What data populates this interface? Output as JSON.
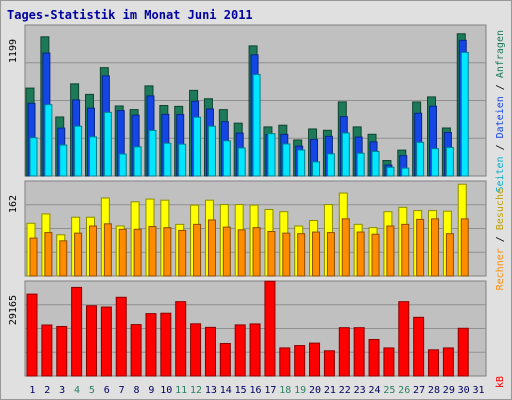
{
  "title": "Tages-Statistik im Monat Juni 2011",
  "colors": {
    "frame_bg": "#e0e0e0",
    "panel_bg": "#c0c0c0",
    "anfragen": "#1d7a58",
    "dateien": "#1446e6",
    "seiten": "#00e6ff",
    "besuche": "#ffff00",
    "rechner": "#ff8c00",
    "kb": "#ff0000",
    "title": "#0000a0",
    "weekend_label": "#2a8060",
    "weekday_label": "#000060"
  },
  "chart_data": [
    {
      "type": "bar",
      "name": "hits-files-pages",
      "categories": [
        "1",
        "2",
        "3",
        "4",
        "5",
        "6",
        "7",
        "8",
        "9",
        "10",
        "11",
        "12",
        "13",
        "14",
        "15",
        "16",
        "17",
        "18",
        "19",
        "20",
        "21",
        "22",
        "23",
        "24",
        "25",
        "26",
        "27",
        "28",
        "29",
        "30",
        "31"
      ],
      "weekend_days": [
        "4",
        "5",
        "11",
        "12",
        "18",
        "19",
        "25",
        "26"
      ],
      "ytick": "1199",
      "ymax": 1199,
      "series": [
        {
          "name": "Anfragen",
          "values": [
            727,
            1151,
            488,
            762,
            675,
            896,
            579,
            549,
            745,
            583,
            576,
            708,
            639,
            549,
            437,
            1076,
            406,
            420,
            298,
            389,
            378,
            613,
            406,
            345,
            128,
            214,
            612,
            654,
            397,
            1176,
            0
          ]
        },
        {
          "name": "Dateien",
          "values": [
            601,
            1016,
            396,
            629,
            561,
            828,
            541,
            503,
            662,
            510,
            508,
            618,
            554,
            449,
            355,
            1002,
            343,
            344,
            247,
            303,
            328,
            491,
            322,
            282,
            90,
            168,
            519,
            577,
            360,
            1122,
            0
          ]
        },
        {
          "name": "Seiten",
          "values": [
            316,
            590,
            256,
            412,
            324,
            526,
            182,
            241,
            377,
            271,
            263,
            486,
            412,
            291,
            232,
            839,
            350,
            265,
            215,
            117,
            183,
            356,
            188,
            203,
            72,
            65,
            278,
            226,
            236,
            1022,
            0
          ]
        }
      ]
    },
    {
      "type": "bar",
      "name": "visits-sites",
      "ytick": "162",
      "ymax": 162,
      "series": [
        {
          "name": "Besuche",
          "values": [
            96,
            113,
            75,
            107,
            107,
            142,
            91,
            135,
            140,
            138,
            94,
            129,
            138,
            130,
            130,
            129,
            121,
            117,
            91,
            101,
            130,
            151,
            94,
            88,
            117,
            125,
            119,
            119,
            118,
            167,
            0
          ]
        },
        {
          "name": "Rechner",
          "values": [
            69,
            79,
            64,
            78,
            91,
            95,
            85,
            85,
            90,
            88,
            83,
            94,
            102,
            89,
            84,
            88,
            81,
            78,
            77,
            80,
            79,
            104,
            80,
            76,
            91,
            94,
            103,
            104,
            77,
            104,
            0
          ]
        }
      ]
    },
    {
      "type": "bar",
      "name": "kbytes",
      "ytick": "29165",
      "ymax": 29165,
      "series": [
        {
          "name": "kB",
          "values": [
            26838,
            16712,
            16231,
            29032,
            23015,
            22600,
            25799,
            16856,
            20440,
            20569,
            24358,
            17106,
            15940,
            10653,
            16742,
            17063,
            31045,
            9198,
            9973,
            10777,
            8266,
            15837,
            15837,
            11960,
            9198,
            24357,
            19226,
            8578,
            9198,
            15637,
            0
          ]
        }
      ]
    }
  ],
  "legend_right": {
    "anfragen": "Anfragen",
    "dateien": "Dateien",
    "seiten": "Seiten",
    "besuche": "Besuche",
    "rechner": "Rechner",
    "kb": "kB",
    "sep": " / "
  }
}
